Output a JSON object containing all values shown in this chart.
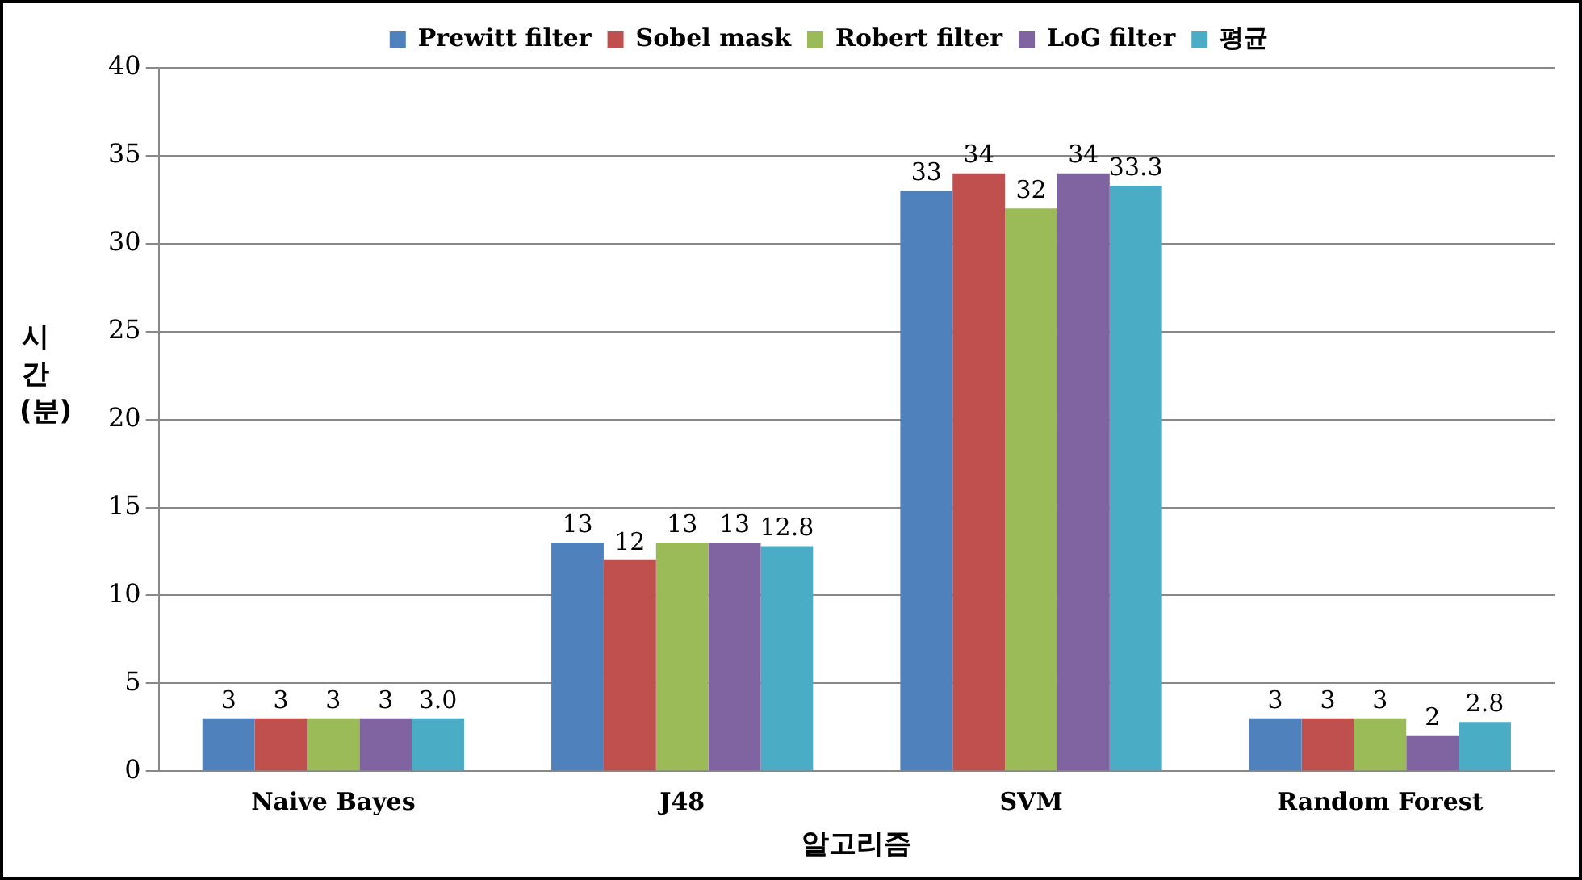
{
  "chart_data": {
    "type": "bar",
    "xlabel": "알고리즘",
    "ylabel": "시간(분)",
    "categories": [
      "Naive Bayes",
      "J48",
      "SVM",
      "Random Forest"
    ],
    "series": [
      {
        "name": "Prewitt filter",
        "color": "#4f81bd",
        "values": [
          3,
          13,
          33,
          3
        ],
        "value_labels": [
          "3",
          "13",
          "33",
          "3"
        ]
      },
      {
        "name": "Sobel mask",
        "color": "#c0504d",
        "values": [
          3,
          12,
          34,
          3
        ],
        "value_labels": [
          "3",
          "12",
          "34",
          "3"
        ]
      },
      {
        "name": "Robert filter",
        "color": "#9bbb59",
        "values": [
          3,
          13,
          32,
          3
        ],
        "value_labels": [
          "3",
          "13",
          "32",
          "3"
        ]
      },
      {
        "name": "LoG filter",
        "color": "#8064a2",
        "values": [
          3,
          13,
          34,
          2
        ],
        "value_labels": [
          "3",
          "13",
          "34",
          "2"
        ]
      },
      {
        "name": "평균",
        "color": "#4bacc6",
        "values": [
          3.0,
          12.8,
          33.3,
          2.8
        ],
        "value_labels": [
          "3.0",
          "12.8",
          "33.3",
          "2.8"
        ]
      }
    ],
    "ylim": [
      0,
      40
    ],
    "yticks": [
      0,
      5,
      10,
      15,
      20,
      25,
      30,
      35,
      40
    ],
    "grid": "y",
    "legend": "top"
  }
}
